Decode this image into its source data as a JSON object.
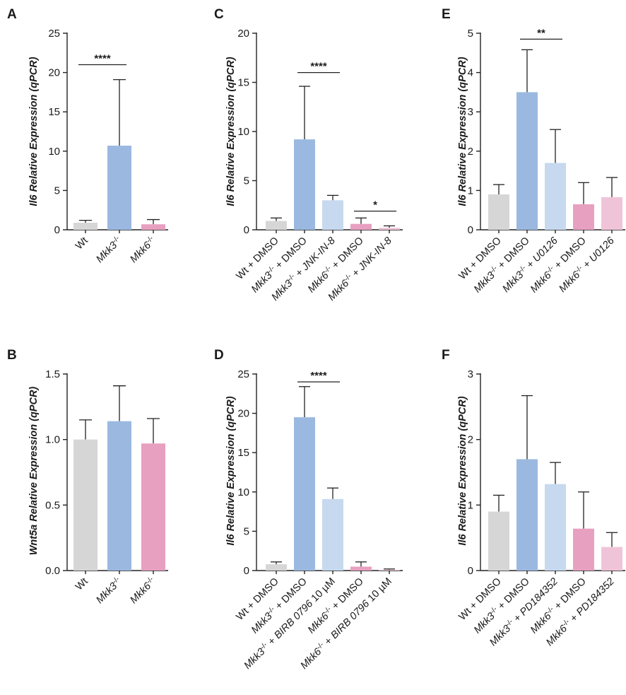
{
  "colors": {
    "gray": "#d6d6d6",
    "blue": "#9bb9e0",
    "lightblue": "#c6d9ef",
    "pink": "#e8a0c0",
    "lightpink": "#f0c4d8"
  },
  "chart_data": [
    {
      "id": "A",
      "panel_letter": "A",
      "type": "bar",
      "ylabel": "Il6 Relative Expression (qPCR)",
      "ylim": [
        0,
        25
      ],
      "yticks": [
        "0",
        "5",
        "10",
        "15",
        "20",
        "25"
      ],
      "categories": [
        "Wt",
        "Mkk3-/-",
        "Mkk6-/-"
      ],
      "category_labels": [
        [
          {
            "t": "Wt",
            "i": false
          }
        ],
        [
          {
            "t": "Mkk3",
            "i": true
          },
          {
            "t": "-/-",
            "sup": true
          }
        ],
        [
          {
            "t": "Mkk6",
            "i": true
          },
          {
            "t": "-/-",
            "sup": true
          }
        ]
      ],
      "values": [
        0.9,
        10.7,
        0.7
      ],
      "errors": [
        0.3,
        8.4,
        0.6
      ],
      "bar_colors": [
        "gray",
        "blue",
        "pink"
      ],
      "significance": [
        {
          "from": 0,
          "to": 1,
          "y": 21,
          "label": "****"
        }
      ]
    },
    {
      "id": "C",
      "panel_letter": "C",
      "type": "bar",
      "ylabel": "Il6 Relative Expression (qPCR)",
      "ylim": [
        0,
        20
      ],
      "yticks": [
        "0",
        "5",
        "10",
        "15",
        "20"
      ],
      "categories": [
        "Wt + DMSO",
        "Mkk3-/- + DMSO",
        "Mkk3-/- + JNK-IN-8",
        "Mkk6-/- + DMSO",
        "Mkk6-/- + JNK-IN-8"
      ],
      "category_labels": [
        [
          {
            "t": "Wt + DMSO",
            "i": false
          }
        ],
        [
          {
            "t": "Mkk3",
            "i": true
          },
          {
            "t": "-/-",
            "sup": true
          },
          {
            "t": " + DMSO",
            "i": false
          }
        ],
        [
          {
            "t": "Mkk3",
            "i": true
          },
          {
            "t": "-/-",
            "sup": true
          },
          {
            "t": " + ",
            "i": false
          },
          {
            "t": "JNK-IN-8",
            "i": true
          }
        ],
        [
          {
            "t": "Mkk6",
            "i": true
          },
          {
            "t": "-/-",
            "sup": true
          },
          {
            "t": " + DMSO",
            "i": false
          }
        ],
        [
          {
            "t": "Mkk6",
            "i": true
          },
          {
            "t": "-/-",
            "sup": true
          },
          {
            "t": " + ",
            "i": false
          },
          {
            "t": "JNK-IN-8",
            "i": true
          }
        ]
      ],
      "values": [
        0.9,
        9.2,
        3.0,
        0.6,
        0.2
      ],
      "errors": [
        0.3,
        5.4,
        0.5,
        0.6,
        0.2
      ],
      "bar_colors": [
        "gray",
        "blue",
        "lightblue",
        "pink",
        "lightpink"
      ],
      "significance": [
        {
          "from": 1,
          "to": 2,
          "y": 16,
          "label": "****"
        },
        {
          "from": 3,
          "to": 4,
          "y": 1.9,
          "label": "*"
        }
      ]
    },
    {
      "id": "E",
      "panel_letter": "E",
      "type": "bar",
      "ylabel": "Il6 Relative Expression (qPCR)",
      "ylim": [
        0,
        5
      ],
      "yticks": [
        "0",
        "1",
        "2",
        "3",
        "4",
        "5"
      ],
      "categories": [
        "Wt + DMSO",
        "Mkk3-/- + DMSO",
        "Mkk3-/- + U0126",
        "Mkk6-/- + DMSO",
        "Mkk6-/- + U0126"
      ],
      "category_labels": [
        [
          {
            "t": "Wt + DMSO",
            "i": false
          }
        ],
        [
          {
            "t": "Mkk3",
            "i": true
          },
          {
            "t": "-/-",
            "sup": true
          },
          {
            "t": " + DMSO",
            "i": false
          }
        ],
        [
          {
            "t": "Mkk3",
            "i": true
          },
          {
            "t": "-/-",
            "sup": true
          },
          {
            "t": " + ",
            "i": false
          },
          {
            "t": "U0126",
            "i": true
          }
        ],
        [
          {
            "t": "Mkk6",
            "i": true
          },
          {
            "t": "-/-",
            "sup": true
          },
          {
            "t": " + DMSO",
            "i": false
          }
        ],
        [
          {
            "t": "Mkk6",
            "i": true
          },
          {
            "t": "-/-",
            "sup": true
          },
          {
            "t": " + ",
            "i": false
          },
          {
            "t": "U0126",
            "i": true
          }
        ]
      ],
      "values": [
        0.9,
        3.5,
        1.7,
        0.65,
        0.83
      ],
      "errors": [
        0.25,
        1.08,
        0.85,
        0.55,
        0.5
      ],
      "bar_colors": [
        "gray",
        "blue",
        "lightblue",
        "pink",
        "lightpink"
      ],
      "significance": [
        {
          "from": 1,
          "to": 2,
          "y": 4.85,
          "label": "**"
        }
      ]
    },
    {
      "id": "B",
      "panel_letter": "B",
      "type": "bar",
      "ylabel": "Wnt5a Relative Expression (qPCR)",
      "ylim": [
        0,
        1.5
      ],
      "yticks": [
        "0.0",
        "0.5",
        "1.0",
        "1.5"
      ],
      "categories": [
        "Wt",
        "Mkk3-/-",
        "Mkk6-/-"
      ],
      "category_labels": [
        [
          {
            "t": "Wt",
            "i": false
          }
        ],
        [
          {
            "t": "Mkk3",
            "i": true
          },
          {
            "t": "-/-",
            "sup": true
          }
        ],
        [
          {
            "t": "Mkk6",
            "i": true
          },
          {
            "t": "-/-",
            "sup": true
          }
        ]
      ],
      "values": [
        1.0,
        1.14,
        0.97
      ],
      "errors": [
        0.15,
        0.27,
        0.19
      ],
      "bar_colors": [
        "gray",
        "blue",
        "pink"
      ],
      "significance": []
    },
    {
      "id": "D",
      "panel_letter": "D",
      "type": "bar",
      "ylabel": "Il6 Relative Expression (qPCR)",
      "ylim": [
        0,
        25
      ],
      "yticks": [
        "0",
        "5",
        "10",
        "15",
        "20",
        "25"
      ],
      "categories": [
        "Wt + DMSO",
        "Mkk3-/- + DMSO",
        "Mkk3-/- + BIRB 0796 10 µM",
        "Mkk6-/- + DMSO",
        "Mkk6-/- + BIRB 0796 10 µM"
      ],
      "category_labels": [
        [
          {
            "t": "Wt + DMSO",
            "i": false
          }
        ],
        [
          {
            "t": "Mkk3",
            "i": true
          },
          {
            "t": "-/-",
            "sup": true
          },
          {
            "t": " + DMSO",
            "i": false
          }
        ],
        [
          {
            "t": "Mkk3",
            "i": true
          },
          {
            "t": "-/-",
            "sup": true
          },
          {
            "t": " + ",
            "i": false
          },
          {
            "t": "BIRB 0796",
            "i": true
          },
          {
            "t": " 10 µM",
            "i": false
          }
        ],
        [
          {
            "t": "Mkk6",
            "i": true
          },
          {
            "t": "-/-",
            "sup": true
          },
          {
            "t": " + DMSO",
            "i": false
          }
        ],
        [
          {
            "t": "Mkk6",
            "i": true
          },
          {
            "t": "-/-",
            "sup": true
          },
          {
            "t": " + ",
            "i": false
          },
          {
            "t": "BIRB 0796",
            "i": true
          },
          {
            "t": " 10 µM",
            "i": false
          }
        ]
      ],
      "values": [
        0.8,
        19.5,
        9.1,
        0.5,
        0.1
      ],
      "errors": [
        0.3,
        3.9,
        1.4,
        0.6,
        0.1
      ],
      "bar_colors": [
        "gray",
        "blue",
        "lightblue",
        "pink",
        "lightpink"
      ],
      "significance": [
        {
          "from": 1,
          "to": 2,
          "y": 24,
          "label": "****"
        }
      ]
    },
    {
      "id": "F",
      "panel_letter": "F",
      "type": "bar",
      "ylabel": "Il6 Relative Expression (qPCR)",
      "ylim": [
        0,
        3
      ],
      "yticks": [
        "0",
        "1",
        "2",
        "3"
      ],
      "categories": [
        "Wt + DMSO",
        "Mkk3-/- + DMSO",
        "Mkk3-/- + PD184352",
        "Mkk6-/- + DMSO",
        "Mkk6-/- + PD184352"
      ],
      "category_labels": [
        [
          {
            "t": "Wt + DMSO",
            "i": false
          }
        ],
        [
          {
            "t": "Mkk3",
            "i": true
          },
          {
            "t": "-/-",
            "sup": true
          },
          {
            "t": " + DMSO",
            "i": false
          }
        ],
        [
          {
            "t": "Mkk3",
            "i": true
          },
          {
            "t": "-/-",
            "sup": true
          },
          {
            "t": " + ",
            "i": false
          },
          {
            "t": "PD184352",
            "i": true
          }
        ],
        [
          {
            "t": "Mkk6",
            "i": true
          },
          {
            "t": "-/-",
            "sup": true
          },
          {
            "t": " + DMSO",
            "i": false
          }
        ],
        [
          {
            "t": "Mkk6",
            "i": true
          },
          {
            "t": "-/-",
            "sup": true
          },
          {
            "t": " + ",
            "i": false
          },
          {
            "t": "PD184352",
            "i": true
          }
        ]
      ],
      "values": [
        0.9,
        1.7,
        1.32,
        0.64,
        0.36
      ],
      "errors": [
        0.25,
        0.97,
        0.33,
        0.56,
        0.22
      ],
      "bar_colors": [
        "gray",
        "blue",
        "lightblue",
        "pink",
        "lightpink"
      ],
      "significance": []
    }
  ]
}
